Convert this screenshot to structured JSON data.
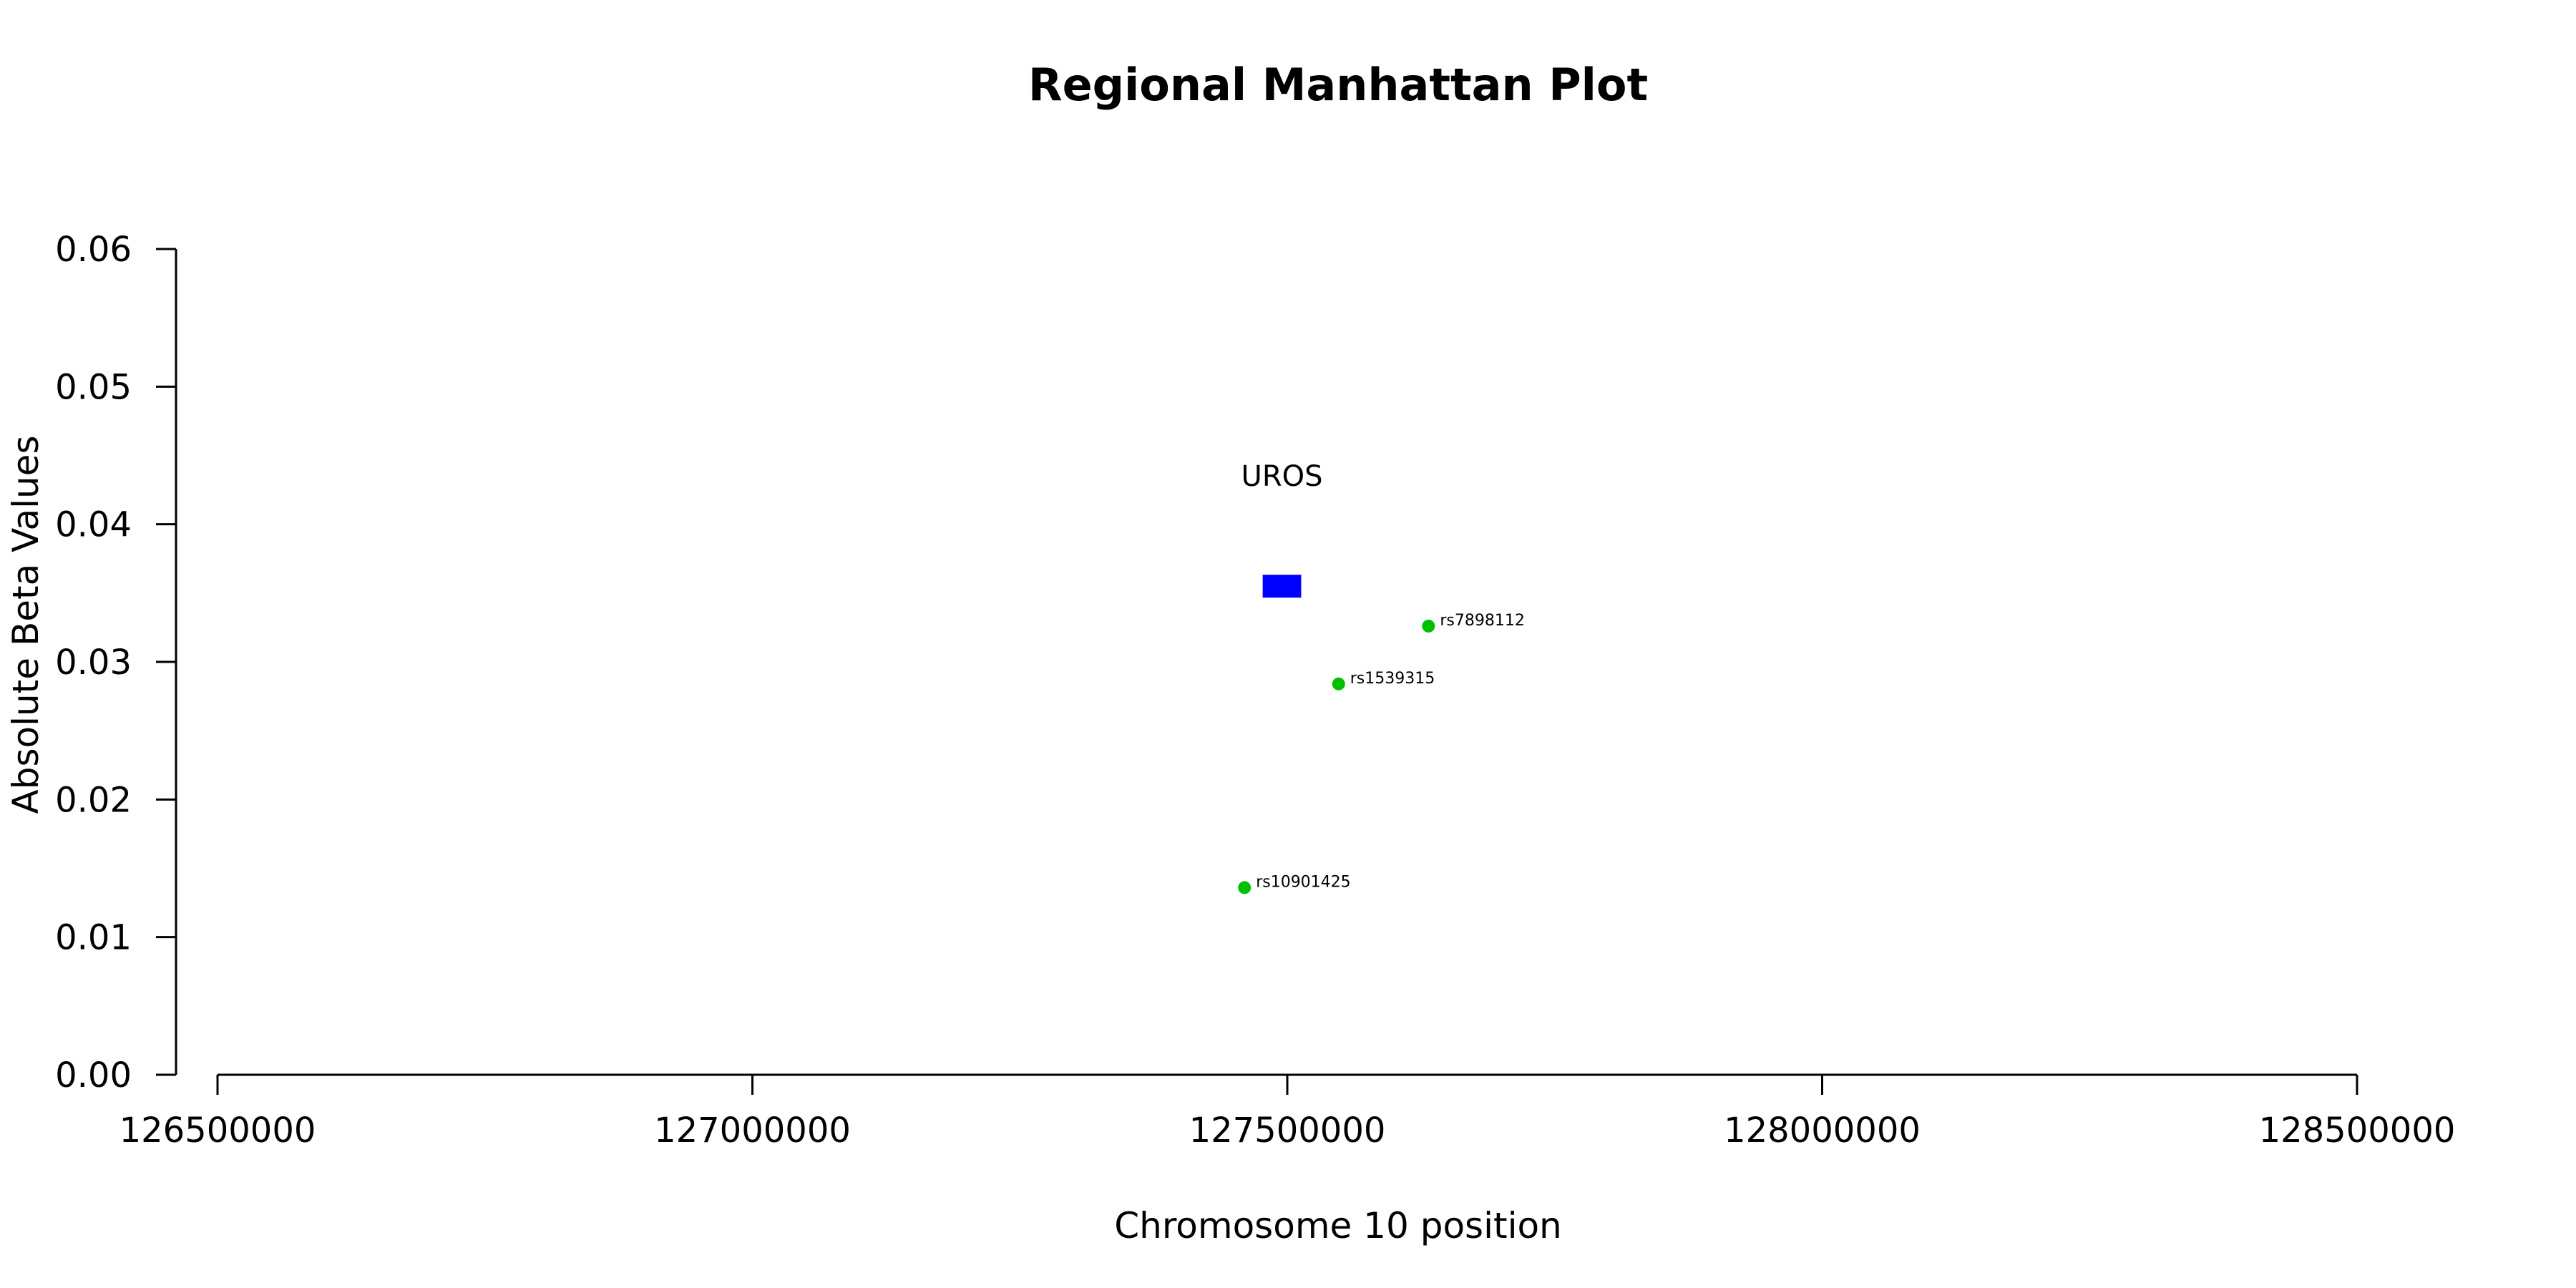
{
  "chart_data": {
    "type": "scatter",
    "title": "Regional Manhattan Plot",
    "xlabel": "Chromosome 10 position",
    "ylabel": "Absolute Beta Values",
    "xlim": [
      126500000,
      128500000
    ],
    "ylim": [
      0,
      0.06
    ],
    "x_ticks": [
      126500000,
      127000000,
      127500000,
      128000000,
      128500000
    ],
    "y_ticks": [
      "0.00",
      "0.01",
      "0.02",
      "0.03",
      "0.04",
      "0.05",
      "0.06"
    ],
    "grid": false,
    "points": [
      {
        "label": "rs10901425",
        "x": 127460000,
        "y": 0.0136,
        "color": "#00c000"
      },
      {
        "label": "rs1539315",
        "x": 127548000,
        "y": 0.0284,
        "color": "#00c000"
      },
      {
        "label": "rs7898112",
        "x": 127632000,
        "y": 0.0326,
        "color": "#00c000"
      }
    ],
    "genes": [
      {
        "name": "UROS",
        "start": 127477000,
        "end": 127513000,
        "y": 0.0355,
        "color": "#0000ff"
      }
    ]
  }
}
